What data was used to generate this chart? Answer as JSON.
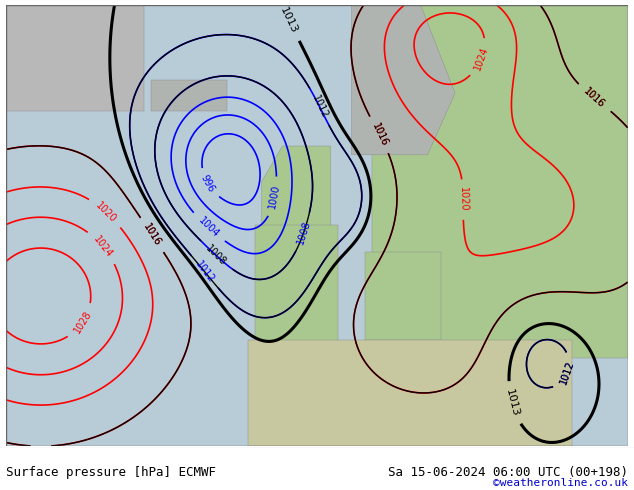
{
  "title_left": "Surface pressure [hPa] ECMWF",
  "title_right": "Sa 15-06-2024 06:00 UTC (00+198)",
  "copyright": "©weatheronline.co.uk",
  "label_fontsize": 7,
  "title_fontsize": 9,
  "copyright_fontsize": 8,
  "fig_width": 6.34,
  "fig_height": 4.9,
  "lon_min": -45,
  "lon_max": 45,
  "lat_min": 25,
  "lat_max": 75
}
